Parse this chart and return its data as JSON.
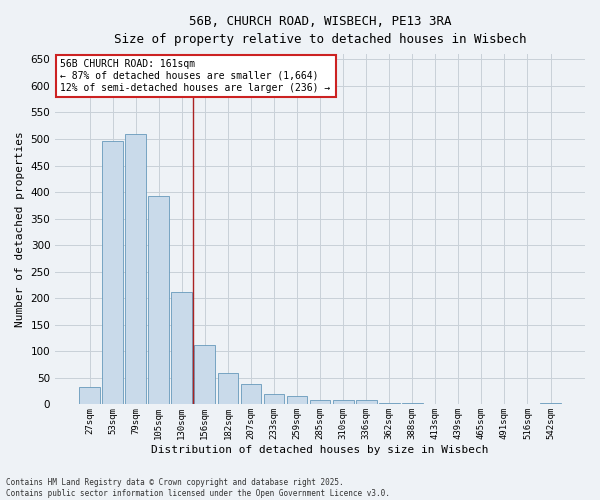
{
  "title_line1": "56B, CHURCH ROAD, WISBECH, PE13 3RA",
  "title_line2": "Size of property relative to detached houses in Wisbech",
  "xlabel": "Distribution of detached houses by size in Wisbech",
  "ylabel": "Number of detached properties",
  "categories": [
    "27sqm",
    "53sqm",
    "79sqm",
    "105sqm",
    "130sqm",
    "156sqm",
    "182sqm",
    "207sqm",
    "233sqm",
    "259sqm",
    "285sqm",
    "310sqm",
    "336sqm",
    "362sqm",
    "388sqm",
    "413sqm",
    "439sqm",
    "465sqm",
    "491sqm",
    "516sqm",
    "542sqm"
  ],
  "values": [
    32,
    497,
    510,
    393,
    212,
    112,
    60,
    38,
    20,
    15,
    9,
    9,
    8,
    3,
    3,
    1,
    0,
    0,
    1,
    0,
    3
  ],
  "bar_color": "#c9daea",
  "bar_edge_color": "#6699bb",
  "grid_color": "#c8d0d8",
  "vline_color": "#aa2222",
  "annotation_text": "56B CHURCH ROAD: 161sqm\n← 87% of detached houses are smaller (1,664)\n12% of semi-detached houses are larger (236) →",
  "annotation_box_color": "#ffffff",
  "annotation_box_edge": "#cc2222",
  "ylim": [
    0,
    660
  ],
  "yticks": [
    0,
    50,
    100,
    150,
    200,
    250,
    300,
    350,
    400,
    450,
    500,
    550,
    600,
    650
  ],
  "footer_line1": "Contains HM Land Registry data © Crown copyright and database right 2025.",
  "footer_line2": "Contains public sector information licensed under the Open Government Licence v3.0.",
  "background_color": "#eef2f6",
  "vline_bin_index": 5
}
